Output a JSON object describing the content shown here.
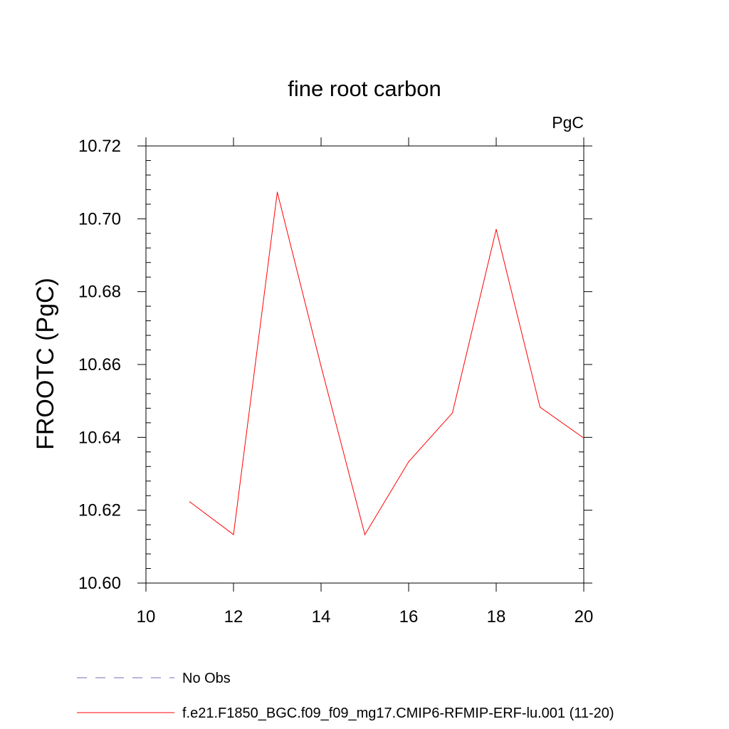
{
  "chart_data": {
    "type": "line",
    "title": "fine root carbon",
    "units_label": "PgC",
    "xlabel": "",
    "ylabel": "FROOTC  (PgC)",
    "xlim": [
      10,
      20
    ],
    "ylim": [
      10.6,
      10.72
    ],
    "x_ticks": [
      "10",
      "12",
      "14",
      "16",
      "18",
      "20"
    ],
    "y_ticks": [
      "10.60",
      "10.62",
      "10.64",
      "10.66",
      "10.68",
      "10.70",
      "10.72"
    ],
    "grid": false,
    "legend_position": "bottom",
    "series": [
      {
        "name": "f.e21.F1850_BGC.f09_f09_mg17.CMIP6-RFMIP-ERF-lu.001 (11-20)",
        "color": "#ff0000",
        "style": "solid",
        "x": [
          11,
          12,
          13,
          14,
          15,
          16,
          17,
          18,
          19,
          20
        ],
        "y": [
          10.6223,
          10.6133,
          10.7073,
          10.6595,
          10.6133,
          10.6333,
          10.6467,
          10.6971,
          10.6483,
          10.6398
        ]
      }
    ],
    "legend": [
      {
        "label": "No Obs",
        "color": "#7b68b8",
        "style": "dashed"
      },
      {
        "label": "f.e21.F1850_BGC.f09_f09_mg17.CMIP6-RFMIP-ERF-lu.001 (11-20)",
        "color": "#ff0000",
        "style": "solid"
      }
    ]
  }
}
